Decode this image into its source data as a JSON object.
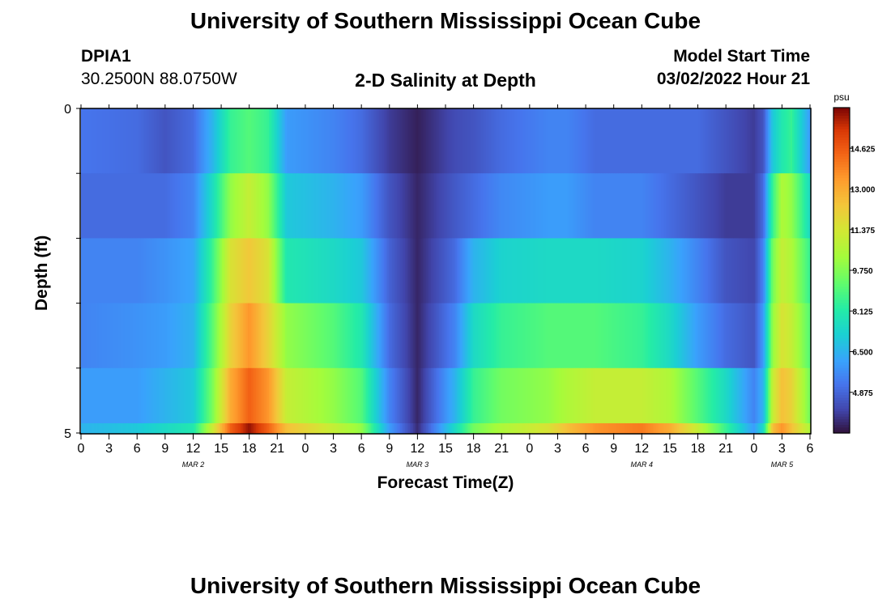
{
  "header": {
    "title": "University of Southern Mississippi Ocean Cube",
    "station": "DPIA1",
    "coords": "30.2500N  88.0750W",
    "plot_title": "2-D Salinity at Depth",
    "model_label": "Model Start Time",
    "model_time": "03/02/2022 Hour 21"
  },
  "footer": {
    "title": "University of Southern Mississippi Ocean Cube"
  },
  "chart_data": {
    "type": "heatmap",
    "title": "2-D Salinity at Depth",
    "xlabel": "Forecast Time(Z)",
    "ylabel": "Depth (ft)",
    "x_tick_labels": [
      "0",
      "3",
      "6",
      "9",
      "12",
      "15",
      "18",
      "21",
      "0",
      "3",
      "6",
      "9",
      "12",
      "15",
      "18",
      "21",
      "0",
      "3",
      "6",
      "9",
      "12",
      "15",
      "18",
      "21",
      "0",
      "3",
      "6"
    ],
    "x_hours_range": [
      0,
      78
    ],
    "day_labels": [
      {
        "label": "MAR 2",
        "hour": 12
      },
      {
        "label": "MAR 3",
        "hour": 36
      },
      {
        "label": "MAR 4",
        "hour": 60
      },
      {
        "label": "MAR 5",
        "hour": 75
      }
    ],
    "y_tick_labels": [
      "0",
      "5"
    ],
    "ylim": [
      0,
      5
    ],
    "colorbar": {
      "unit": "psu",
      "range": [
        3.25,
        16.25
      ],
      "tick_labels": [
        "14.625",
        "13.000",
        "11.375",
        "9.750",
        "8.125",
        "6.500",
        "4.875"
      ],
      "tick_values": [
        14.625,
        13.0,
        11.375,
        9.75,
        8.125,
        6.5,
        4.875
      ]
    },
    "depth_layers": [
      0.5,
      1.5,
      2.5,
      3.5,
      4.5,
      4.9
    ],
    "time_keypoints_hours": [
      0,
      6,
      9,
      12,
      14,
      16,
      18,
      20,
      22,
      27,
      30,
      33,
      36,
      40,
      42,
      45,
      50,
      52,
      55,
      60,
      63,
      66,
      69,
      72,
      73,
      74,
      75,
      76,
      78
    ],
    "values": [
      [
        5.2,
        5.0,
        4.5,
        5.0,
        6.5,
        8.5,
        9.0,
        8.5,
        6.0,
        5.5,
        5.0,
        4.0,
        3.5,
        4.3,
        4.5,
        5.0,
        5.5,
        5.5,
        5.0,
        5.0,
        5.0,
        5.0,
        4.5,
        4.0,
        4.5,
        7.0,
        8.0,
        8.5,
        6.0
      ],
      [
        5.0,
        5.0,
        5.0,
        5.5,
        7.5,
        10.0,
        11.0,
        10.0,
        7.0,
        6.5,
        6.0,
        4.5,
        3.6,
        4.6,
        5.0,
        5.6,
        6.0,
        6.0,
        5.5,
        5.5,
        5.0,
        4.5,
        4.0,
        4.0,
        5.0,
        8.5,
        10.5,
        10.0,
        7.5
      ],
      [
        5.5,
        5.5,
        5.8,
        6.2,
        8.5,
        11.5,
        12.3,
        11.5,
        8.0,
        7.5,
        7.0,
        4.8,
        3.6,
        5.0,
        6.5,
        7.3,
        7.5,
        7.5,
        7.5,
        7.3,
        6.5,
        5.5,
        4.5,
        4.2,
        5.5,
        9.5,
        11.0,
        10.5,
        8.5
      ],
      [
        5.5,
        5.8,
        6.0,
        6.5,
        9.0,
        12.0,
        13.5,
        12.0,
        10.0,
        9.0,
        8.0,
        5.0,
        3.6,
        5.5,
        7.5,
        8.5,
        9.0,
        9.0,
        9.0,
        8.5,
        7.5,
        6.0,
        5.0,
        4.5,
        6.0,
        10.0,
        11.5,
        11.0,
        9.0
      ],
      [
        6.0,
        6.0,
        6.5,
        7.0,
        9.5,
        13.0,
        14.5,
        13.5,
        11.0,
        10.0,
        9.0,
        5.5,
        3.6,
        6.5,
        8.5,
        9.5,
        10.0,
        10.5,
        11.0,
        11.0,
        10.5,
        9.0,
        7.5,
        5.5,
        6.5,
        11.0,
        12.5,
        12.0,
        9.5
      ],
      [
        6.5,
        7.0,
        7.5,
        8.0,
        11.0,
        14.5,
        16.0,
        14.5,
        12.5,
        11.0,
        10.0,
        6.0,
        3.7,
        7.5,
        9.5,
        10.5,
        11.5,
        12.5,
        13.5,
        14.0,
        13.0,
        11.0,
        8.5,
        6.0,
        7.5,
        12.5,
        13.5,
        12.5,
        10.5
      ]
    ]
  }
}
